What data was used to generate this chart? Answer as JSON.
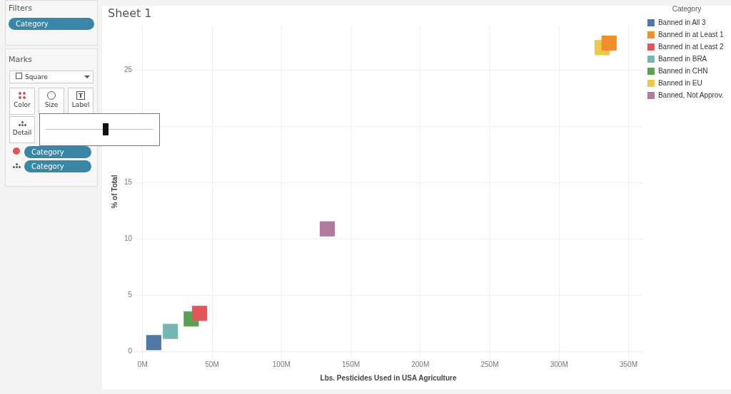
{
  "chart_data": [
    {
      "type": "scatter",
      "title": "Sheet 1",
      "xlabel": "Lbs. Pesticides Used in USA Agriculture",
      "ylabel": "% of Total",
      "legend_title": "Category",
      "legend": "top right",
      "marker": "square",
      "grid": true,
      "xlim": [
        -6000000,
        360000000
      ],
      "ylim": [
        -0.6,
        29
      ],
      "xticks": [
        {
          "value": 0,
          "label": "0M"
        },
        {
          "value": 50000000,
          "label": "50M"
        },
        {
          "value": 100000000,
          "label": "100M"
        },
        {
          "value": 150000000,
          "label": "150M"
        },
        {
          "value": 200000000,
          "label": "200M"
        },
        {
          "value": 250000000,
          "label": "250M"
        },
        {
          "value": 300000000,
          "label": "300M"
        },
        {
          "value": 350000000,
          "label": "350M"
        }
      ],
      "yticks": [
        0,
        5,
        10,
        15,
        {
          "value": 20,
          "label": null
        },
        25
      ],
      "series": [
        {
          "name": "Banned in All 3",
          "color": "#4e79a7",
          "x": [
            8000000
          ],
          "values": [
            0.8
          ]
        },
        {
          "name": "Banned in at Least 1",
          "color": "#f28e2b",
          "x": [
            336000000
          ],
          "values": [
            27.4
          ]
        },
        {
          "name": "Banned in at Least 2",
          "color": "#e15759",
          "x": [
            41000000
          ],
          "values": [
            3.4
          ]
        },
        {
          "name": "Banned in BRA",
          "color": "#76b7b2",
          "x": [
            20000000
          ],
          "values": [
            1.8
          ]
        },
        {
          "name": "Banned in CHN",
          "color": "#59a14f",
          "x": [
            35000000
          ],
          "values": [
            2.9
          ]
        },
        {
          "name": "Banned in EU",
          "color": "#edc948",
          "x": [
            331000000
          ],
          "values": [
            27.0
          ]
        },
        {
          "name": "Banned, Not Approv.",
          "color": "#b07aa1",
          "x": [
            133000000
          ],
          "values": [
            10.9
          ]
        }
      ]
    },
    {
      "type": "other",
      "annotations": [
        "Filters",
        "Category",
        "Marks",
        "Square",
        "Color",
        "Size",
        "Label",
        "Detail",
        "Category",
        "Category"
      ]
    }
  ]
}
